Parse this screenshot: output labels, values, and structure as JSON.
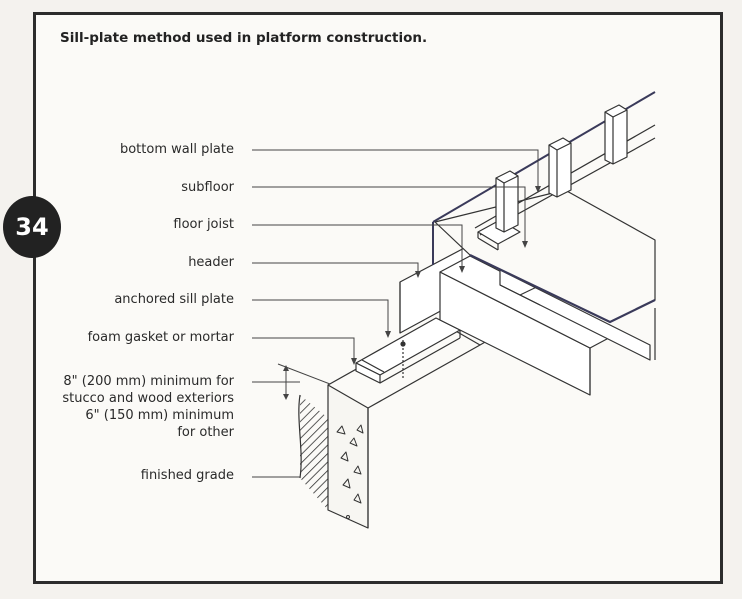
{
  "page": {
    "number": "34",
    "title": "Sill-plate method used in platform construction."
  },
  "labels": {
    "bottom_wall_plate": "bottom wall plate",
    "subfloor": "subfloor",
    "floor_joist": "floor joist",
    "header": "header",
    "anchored_sill_plate": "anchored sill plate",
    "foam_gasket": "foam gasket or mortar",
    "clearance_line1": "8\" (200 mm) minimum for",
    "clearance_line2": "stucco and wood exteriors",
    "clearance_line3": "6\" (150 mm) minimum",
    "clearance_line4": "for other",
    "finished_grade": "finished grade"
  }
}
